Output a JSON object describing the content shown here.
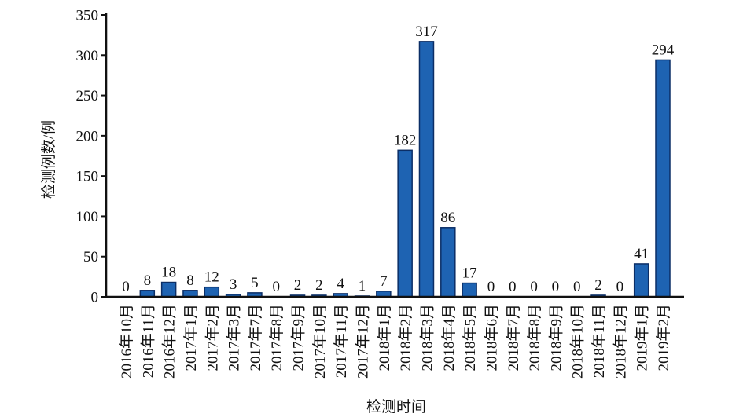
{
  "chart_data": {
    "type": "bar",
    "categories": [
      "2016年10月",
      "2016年11月",
      "2016年12月",
      "2017年1月",
      "2017年2月",
      "2017年3月",
      "2017年7月",
      "2017年8月",
      "2017年9月",
      "2017年10月",
      "2017年11月",
      "2017年12月",
      "2018年1月",
      "2018年2月",
      "2018年3月",
      "2018年4月",
      "2018年5月",
      "2018年6月",
      "2018年7月",
      "2018年8月",
      "2018年9月",
      "2018年10月",
      "2018年11月",
      "2018年12月",
      "2019年1月",
      "2019年2月"
    ],
    "values": [
      0,
      8,
      18,
      8,
      12,
      3,
      5,
      0,
      2,
      2,
      4,
      1,
      7,
      182,
      317,
      86,
      17,
      0,
      0,
      0,
      0,
      0,
      2,
      0,
      41,
      294
    ],
    "xlabel": "检测时间",
    "ylabel": "检测例数/例",
    "ylim": [
      0,
      350
    ],
    "yticks": [
      0,
      50,
      100,
      150,
      200,
      250,
      300,
      350
    ],
    "data_labels": true,
    "grid": false,
    "legend": "none",
    "bar_color": "#1e63b2",
    "bar_edge_color": "#0b2e66"
  }
}
